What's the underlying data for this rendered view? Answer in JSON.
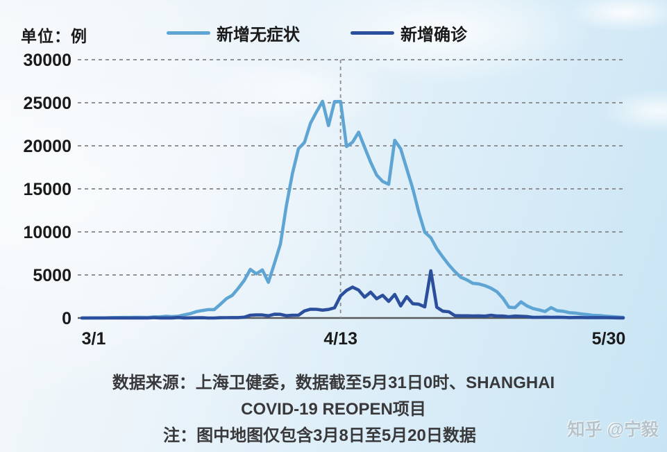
{
  "header": {
    "unit_label": "单位：例",
    "legend": [
      {
        "label": "新增无症状",
        "color": "#5FA5D4"
      },
      {
        "label": "新增确诊",
        "color": "#2B4F9C"
      }
    ]
  },
  "footer": {
    "lines": [
      "数据来源：上海卫健委，数据截至5月31日0时、SHANGHAI",
      "COVID-19 REOPEN项目",
      "注：图中地图仅包含3月8日至5月20日数据"
    ]
  },
  "watermark": "知乎 @宁毅",
  "chart_data": {
    "type": "line",
    "title": "",
    "xlabel": "",
    "ylabel": "单位：例",
    "ylim": [
      0,
      30000
    ],
    "yticks": [
      0,
      5000,
      10000,
      15000,
      20000,
      25000,
      30000
    ],
    "grid": "dashed-horizontal",
    "legend_position": "top",
    "colors": {
      "axis": "#58595B",
      "grid": "#8F9194",
      "tick_text": "#1A1A1A"
    },
    "xticks": [
      {
        "label": "3/1",
        "index": 0,
        "vline": false
      },
      {
        "label": "4/13",
        "index": 43,
        "vline": true
      },
      {
        "label": "5/30",
        "index": 90,
        "vline": false
      }
    ],
    "x": [
      "3/1",
      "3/2",
      "3/3",
      "3/4",
      "3/5",
      "3/6",
      "3/7",
      "3/8",
      "3/9",
      "3/10",
      "3/11",
      "3/12",
      "3/13",
      "3/14",
      "3/15",
      "3/16",
      "3/17",
      "3/18",
      "3/19",
      "3/20",
      "3/21",
      "3/22",
      "3/23",
      "3/24",
      "3/25",
      "3/26",
      "3/27",
      "3/28",
      "3/29",
      "3/30",
      "3/31",
      "4/1",
      "4/2",
      "4/3",
      "4/4",
      "4/5",
      "4/6",
      "4/7",
      "4/8",
      "4/9",
      "4/10",
      "4/11",
      "4/12",
      "4/13",
      "4/14",
      "4/15",
      "4/16",
      "4/17",
      "4/18",
      "4/19",
      "4/20",
      "4/21",
      "4/22",
      "4/23",
      "4/24",
      "4/25",
      "4/26",
      "4/27",
      "4/28",
      "4/29",
      "4/30",
      "5/1",
      "5/2",
      "5/3",
      "5/4",
      "5/5",
      "5/6",
      "5/7",
      "5/8",
      "5/9",
      "5/10",
      "5/11",
      "5/12",
      "5/13",
      "5/14",
      "5/15",
      "5/16",
      "5/17",
      "5/18",
      "5/19",
      "5/20",
      "5/21",
      "5/22",
      "5/23",
      "5/24",
      "5/25",
      "5/26",
      "5/27",
      "5/28",
      "5/29",
      "5/30"
    ],
    "series": [
      {
        "name": "新增无症状",
        "color": "#5FA5D4",
        "values": [
          1,
          5,
          14,
          16,
          28,
          45,
          55,
          62,
          64,
          75,
          83,
          65,
          130,
          139,
          197,
          150,
          203,
          366,
          504,
          734,
          865,
          977,
          979,
          1580,
          2231,
          2631,
          3450,
          4381,
          5656,
          5131,
          5589,
          4144,
          6311,
          8581,
          13086,
          16766,
          19660,
          20398,
          22609,
          23937,
          25173,
          22348,
          25141,
          25146,
          19923,
          20416,
          21582,
          19831,
          18100,
          16600,
          15861,
          15532,
          20634,
          19657,
          17332,
          15032,
          12309,
          9970,
          9330,
          8057,
          7084,
          6168,
          5395,
          4722,
          4431,
          4024,
          3961,
          3760,
          3471,
          3045,
          2281,
          1259,
          1203,
          1869,
          1403,
          1100,
          938,
          746,
          1211,
          858,
          784,
          622,
          570,
          469,
          403,
          305,
          290,
          219,
          170,
          122,
          67
        ]
      },
      {
        "name": "新增确诊",
        "color": "#2B4F9C",
        "values": [
          1,
          3,
          2,
          3,
          0,
          3,
          4,
          3,
          4,
          11,
          1,
          1,
          41,
          9,
          6,
          8,
          57,
          8,
          17,
          24,
          31,
          4,
          4,
          29,
          38,
          45,
          50,
          96,
          326,
          355,
          358,
          260,
          438,
          425,
          268,
          311,
          322,
          824,
          1015,
          1006,
          914,
          994,
          1189,
          2573,
          3200,
          3590,
          3238,
          2417,
          2999,
          2234,
          2634,
          1931,
          2736,
          1401,
          2472,
          1661,
          1606,
          1292,
          5487,
          1249,
          788,
          727,
          274,
          260,
          261,
          245,
          253,
          215,
          322,
          234,
          228,
          144,
          227,
          194,
          166,
          69,
          77,
          96,
          82,
          88,
          84,
          52,
          55,
          58,
          44,
          48,
          45,
          39,
          29,
          16,
          9
        ]
      }
    ]
  }
}
